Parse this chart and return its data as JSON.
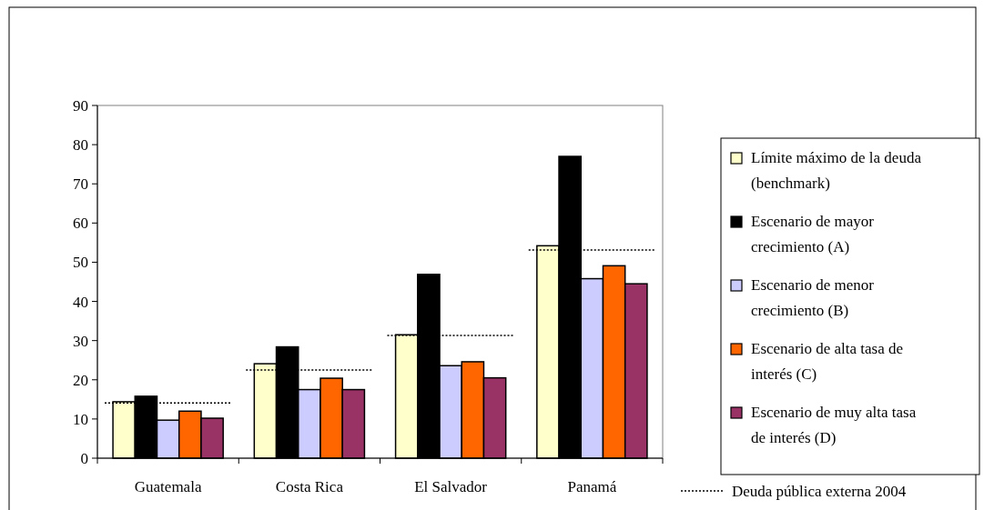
{
  "chart_data": {
    "type": "bar",
    "categories": [
      "Guatemala",
      "Costa Rica",
      "El Salvador",
      "Panamá"
    ],
    "ylim": [
      0,
      90
    ],
    "yticks": [
      0,
      10,
      20,
      30,
      40,
      50,
      60,
      70,
      80,
      90
    ],
    "grid": false,
    "legend": "right",
    "series": [
      {
        "name": "Límite máximo de la deuda (benchmark)",
        "color": "#ffffcc",
        "values": [
          14.4,
          24.1,
          31.5,
          54.2
        ]
      },
      {
        "name": "Escenario de mayor crecimiento (A)",
        "color": "#000000",
        "values": [
          15.8,
          28.4,
          46.9,
          77.0
        ]
      },
      {
        "name": "Escenario de menor crecimiento (B)",
        "color": "#ccccff",
        "values": [
          9.7,
          17.5,
          23.6,
          45.8
        ]
      },
      {
        "name": "Escenario de alta tasa de interés (C)",
        "color": "#ff6600",
        "values": [
          12.0,
          20.4,
          24.6,
          49.1
        ]
      },
      {
        "name": "Escenario de muy alta tasa de interés (D)",
        "color": "#993366",
        "values": [
          10.2,
          17.5,
          20.5,
          44.5
        ]
      }
    ],
    "ref_lines": [
      {
        "axis": "y",
        "value": 14.1,
        "color": "#000000",
        "line_style": "dotted",
        "label": "Deuda pública externa 2004"
      },
      {
        "axis": "y",
        "value": 22.5,
        "color": "#000000",
        "line_style": "dotted"
      },
      {
        "axis": "y",
        "value": 31.3,
        "color": "#000000",
        "line_style": "dotted"
      },
      {
        "axis": "y",
        "value": 53.1,
        "color": "#000000",
        "line_style": "dotted"
      }
    ]
  }
}
